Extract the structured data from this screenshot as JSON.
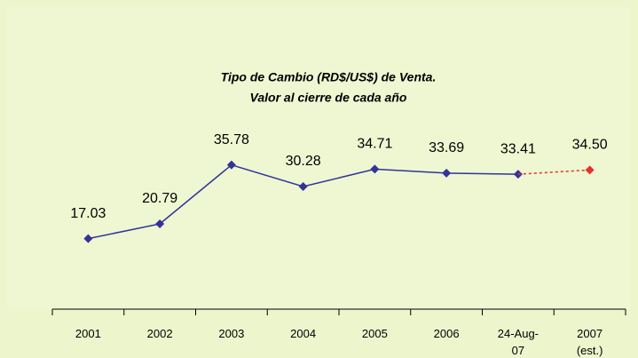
{
  "chart_data": {
    "type": "line",
    "title": "Tipo de Cambio (RD$/US$) de Venta.",
    "subtitle": "Valor al cierre de cada año",
    "categories": [
      "2001",
      "2002",
      "2003",
      "2004",
      "2005",
      "2006",
      "24-Aug-07",
      "2007 (est.)"
    ],
    "ylim": [
      0,
      40
    ],
    "series": [
      {
        "color": "#333399",
        "values": [
          17.03,
          20.79,
          35.78,
          30.28,
          34.71,
          33.69,
          33.41,
          null
        ]
      },
      {
        "color": "#e8302a",
        "dashed": true,
        "values": [
          null,
          null,
          null,
          null,
          null,
          null,
          null,
          34.5
        ],
        "value_labels": [
          null,
          null,
          null,
          null,
          null,
          null,
          null,
          "34.50"
        ]
      }
    ]
  }
}
